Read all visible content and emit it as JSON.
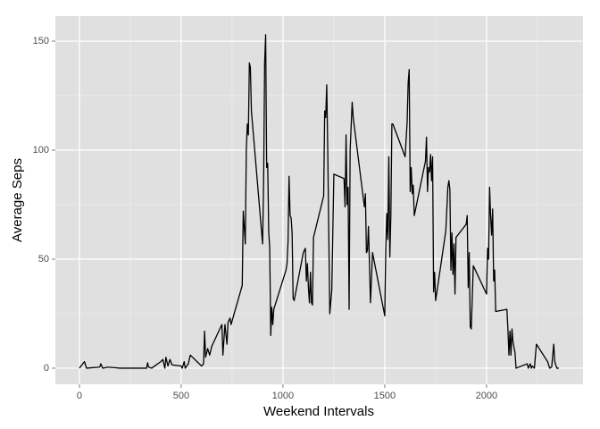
{
  "chart_data": {
    "type": "line",
    "x_label": "Weekend Intervals",
    "y_label": "Average Seps",
    "color": "#000000",
    "x": [
      0,
      25,
      35,
      100,
      105,
      115,
      140,
      200,
      300,
      330,
      335,
      340,
      355,
      400,
      410,
      420,
      425,
      435,
      445,
      455,
      500,
      505,
      515,
      520,
      535,
      545,
      600,
      610,
      615,
      620,
      630,
      640,
      650,
      700,
      705,
      715,
      725,
      730,
      740,
      745,
      800,
      805,
      815,
      820,
      825,
      830,
      835,
      840,
      845,
      900,
      905,
      910,
      915,
      920,
      925,
      930,
      935,
      940,
      945,
      950,
      955,
      1015,
      1020,
      1025,
      1030,
      1035,
      1040,
      1045,
      1050,
      1055,
      1100,
      1110,
      1115,
      1120,
      1125,
      1130,
      1135,
      1140,
      1145,
      1150,
      1200,
      1205,
      1210,
      1215,
      1220,
      1230,
      1240,
      1250,
      1300,
      1305,
      1310,
      1315,
      1320,
      1325,
      1330,
      1340,
      1345,
      1400,
      1405,
      1410,
      1415,
      1420,
      1430,
      1440,
      1500,
      1505,
      1510,
      1515,
      1520,
      1525,
      1530,
      1535,
      1540,
      1600,
      1610,
      1615,
      1620,
      1625,
      1630,
      1635,
      1640,
      1645,
      1700,
      1705,
      1710,
      1715,
      1720,
      1725,
      1730,
      1735,
      1740,
      1745,
      1750,
      1800,
      1810,
      1815,
      1820,
      1825,
      1830,
      1835,
      1840,
      1845,
      1850,
      1900,
      1905,
      1910,
      1915,
      1920,
      1925,
      1935,
      2000,
      2005,
      2010,
      2015,
      2020,
      2025,
      2030,
      2035,
      2040,
      2045,
      2100,
      2105,
      2110,
      2115,
      2120,
      2125,
      2130,
      2140,
      2145,
      2200,
      2205,
      2210,
      2215,
      2220,
      2225,
      2235,
      2245,
      2300,
      2310,
      2320,
      2330,
      2335,
      2345,
      2355
    ],
    "values": [
      0,
      3,
      0,
      0.5,
      2,
      0,
      0.5,
      0,
      0,
      0,
      2.5,
      0.5,
      0,
      3,
      4,
      0,
      5,
      1,
      4,
      1.5,
      1,
      0,
      3,
      0,
      2,
      6,
      1,
      2,
      17,
      5,
      9,
      6,
      10,
      20,
      6,
      20,
      11,
      21,
      23,
      20,
      38,
      72,
      57,
      100,
      112,
      107,
      140,
      138,
      118,
      57,
      85,
      140,
      153,
      92,
      94,
      63,
      55,
      15,
      28,
      20,
      27,
      45,
      48,
      58,
      88,
      70,
      69,
      62,
      32,
      31,
      53,
      55,
      40,
      48,
      37,
      30,
      44,
      30,
      29,
      60,
      79,
      118,
      115,
      130,
      100,
      25,
      36,
      89,
      87,
      74,
      107,
      75,
      83,
      27,
      100,
      122,
      115,
      74,
      80,
      53,
      54,
      65,
      30,
      53,
      24,
      55,
      71,
      59,
      97,
      51,
      70,
      112,
      112,
      97,
      113,
      131,
      137,
      81,
      92,
      80,
      84,
      70,
      95,
      106,
      81,
      92,
      90,
      98,
      86,
      97,
      35,
      44,
      31,
      63,
      83,
      86,
      82,
      45,
      62,
      43,
      57,
      34,
      60,
      66,
      70,
      37,
      53,
      19,
      18,
      47,
      34,
      55,
      50,
      83,
      70,
      61,
      73,
      40,
      45,
      26,
      27,
      18,
      6,
      17,
      6,
      18,
      12,
      7,
      0,
      2,
      0,
      1,
      2,
      0,
      1,
      0,
      11,
      3,
      0,
      0.5,
      11,
      3,
      0,
      0
    ],
    "xlim": [
      -118,
      2474
    ],
    "ylim": [
      -7.4,
      161.5
    ],
    "xticks": [
      0,
      500,
      1000,
      1500,
      2000
    ],
    "yticks": [
      0,
      50,
      100,
      150
    ],
    "grid": true
  }
}
